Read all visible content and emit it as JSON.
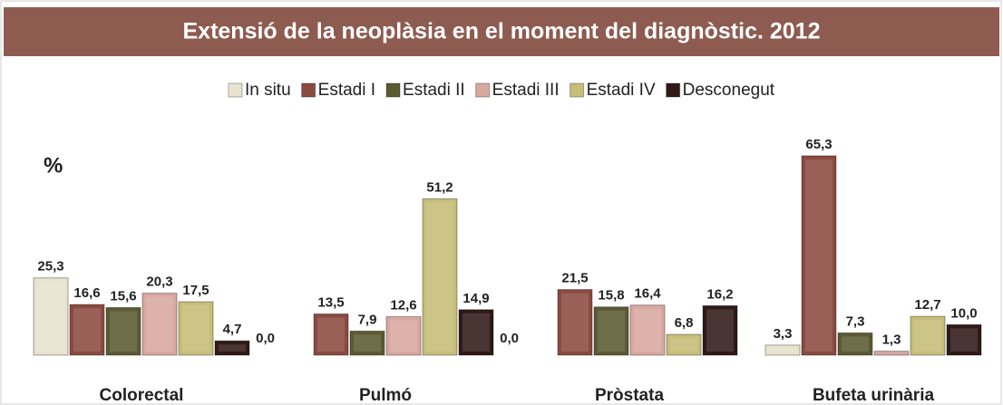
{
  "chart_data": {
    "type": "bar",
    "title": "Extensió de la neoplàsia en el moment del diagnòstic. 2012",
    "y_label": "%",
    "categories": [
      "Colorectal",
      "Pulmó",
      "Pròstata",
      "Bufeta urinària"
    ],
    "series": [
      {
        "name": "In situ",
        "color": "#e8e3cf",
        "values": [
          25.3,
          0.0,
          0.0,
          3.3
        ],
        "value_labels": [
          "25,3",
          "0,0",
          "0,0",
          "3,3"
        ]
      },
      {
        "name": "Estadi I",
        "color": "#8b4a40",
        "values": [
          16.6,
          13.5,
          21.5,
          65.3
        ],
        "value_labels": [
          "16,6",
          "13,5",
          "21,5",
          "65,3"
        ]
      },
      {
        "name": "Estadi II",
        "color": "#5b5a32",
        "values": [
          15.6,
          7.9,
          15.8,
          7.3
        ],
        "value_labels": [
          "15,6",
          "7,9",
          "15,8",
          "7,3"
        ]
      },
      {
        "name": "Estadi III",
        "color": "#d8a8a0",
        "values": [
          20.3,
          12.6,
          16.4,
          1.3
        ],
        "value_labels": [
          "20,3",
          "12,6",
          "16,4",
          "1,3"
        ]
      },
      {
        "name": "Estadi IV",
        "color": "#c6bd78",
        "values": [
          17.5,
          51.2,
          6.8,
          12.7
        ],
        "value_labels": [
          "17,5",
          "51,2",
          "6,8",
          "12,7"
        ]
      },
      {
        "name": "Desconegut",
        "color": "#2f1a18",
        "values": [
          4.7,
          14.9,
          16.2,
          10.0
        ],
        "value_labels": [
          "4,7",
          "14,9",
          "16,2",
          "10,0"
        ]
      }
    ]
  }
}
